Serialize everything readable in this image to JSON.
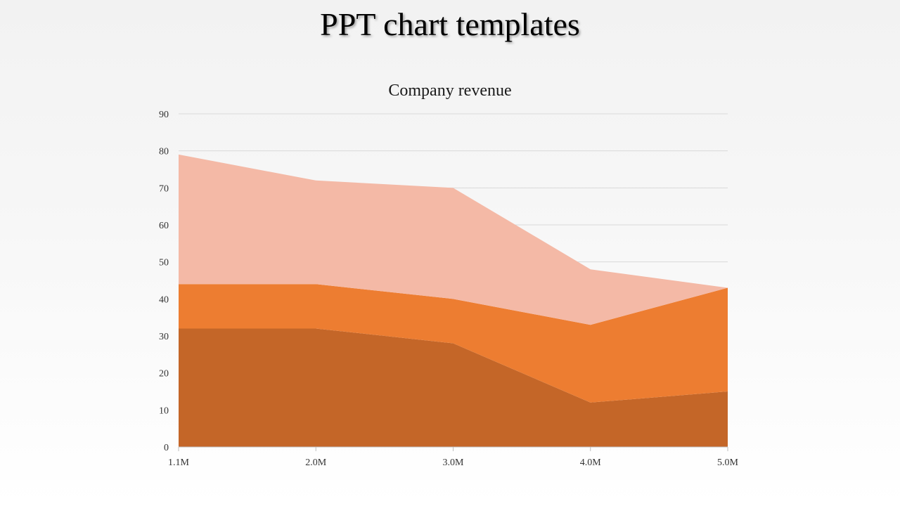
{
  "slide": {
    "title": "PPT chart templates"
  },
  "colors": {
    "series_bottom": "#c46628",
    "series_middle": "#ed7d31",
    "series_top": "#f4b9a6",
    "gridline": "#d9d9d9",
    "axis": "#bfbfbf"
  },
  "chart_data": {
    "type": "area",
    "stacked": true,
    "title": "Company revenue",
    "xlabel": "",
    "ylabel": "",
    "categories": [
      "1.1M",
      "2.0M",
      "3.0M",
      "4.0M",
      "5.0M"
    ],
    "ylim": [
      0,
      90
    ],
    "yticks": [
      0,
      10,
      20,
      30,
      40,
      50,
      60,
      70,
      80,
      90
    ],
    "grid": true,
    "legend": "none",
    "series": [
      {
        "values": [
          32,
          32,
          28,
          12,
          15
        ]
      },
      {
        "values": [
          12,
          12,
          12,
          21,
          28
        ]
      },
      {
        "values": [
          35,
          28,
          30,
          15,
          0
        ]
      }
    ]
  }
}
